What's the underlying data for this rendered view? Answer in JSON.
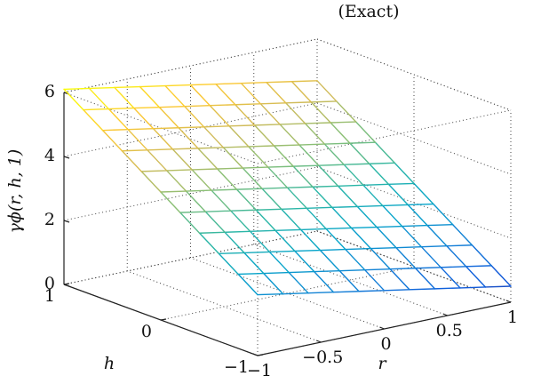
{
  "chart_data": {
    "type": "surface",
    "title": "(Exact)",
    "xlabel": "r",
    "ylabel": "h",
    "zlabel": "γϕ(r, h, 1)",
    "x": [
      -1,
      -0.8,
      -0.6,
      -0.4,
      -0.2,
      0,
      0.2,
      0.4,
      0.6,
      0.8,
      1
    ],
    "y": [
      -1,
      -0.8,
      -0.6,
      -0.4,
      -0.2,
      0,
      0.2,
      0.4,
      0.6,
      0.8,
      1
    ],
    "z": [
      [
        1.9,
        1.76,
        1.62,
        1.48,
        1.34,
        1.2,
        1.06,
        0.92,
        0.78,
        0.64,
        0.5
      ],
      [
        2.32,
        2.18,
        2.04,
        1.9,
        1.76,
        1.62,
        1.48,
        1.34,
        1.2,
        1.06,
        0.92
      ],
      [
        2.74,
        2.6,
        2.46,
        2.32,
        2.18,
        2.04,
        1.9,
        1.76,
        1.62,
        1.48,
        1.34
      ],
      [
        3.16,
        3.02,
        2.88,
        2.74,
        2.6,
        2.46,
        2.32,
        2.18,
        2.04,
        1.9,
        1.76
      ],
      [
        3.58,
        3.44,
        3.3,
        3.16,
        3.02,
        2.88,
        2.74,
        2.6,
        2.46,
        2.32,
        2.18
      ],
      [
        4.0,
        3.86,
        3.72,
        3.58,
        3.44,
        3.3,
        3.16,
        3.02,
        2.88,
        2.74,
        2.6
      ],
      [
        4.42,
        4.28,
        4.14,
        4.0,
        3.86,
        3.72,
        3.58,
        3.44,
        3.3,
        3.16,
        3.02
      ],
      [
        4.84,
        4.7,
        4.56,
        4.42,
        4.28,
        4.14,
        4.0,
        3.86,
        3.72,
        3.58,
        3.44
      ],
      [
        5.26,
        5.12,
        4.98,
        4.84,
        4.7,
        4.56,
        4.42,
        4.28,
        4.14,
        4.0,
        3.86
      ],
      [
        5.68,
        5.54,
        5.4,
        5.26,
        5.12,
        4.98,
        4.84,
        4.7,
        4.56,
        4.42,
        4.28
      ],
      [
        6.1,
        5.96,
        5.82,
        5.68,
        5.54,
        5.4,
        5.26,
        5.12,
        4.98,
        4.84,
        4.7
      ]
    ],
    "xlim": [
      -1,
      1
    ],
    "xticks": [
      {
        "value": -1,
        "label": "−1"
      },
      {
        "value": -0.5,
        "label": "−0.5"
      },
      0,
      0.5,
      1
    ],
    "ylim": [
      -1,
      1
    ],
    "yticks": [
      {
        "value": -1,
        "label": "−1"
      },
      0,
      1
    ],
    "zlim": [
      0,
      6
    ],
    "zticks": [
      0,
      2,
      4,
      6
    ],
    "grid": true,
    "colormap": [
      "#352a87",
      "#0f5cdd",
      "#1481d6",
      "#06a4ca",
      "#2eb7a4",
      "#87bf77",
      "#d1bb59",
      "#fec832",
      "#f9fb0e"
    ]
  }
}
